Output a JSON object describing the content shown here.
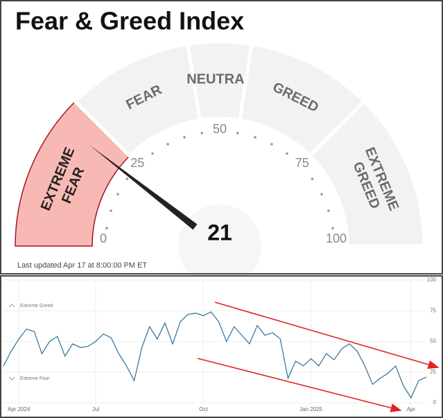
{
  "gauge": {
    "title": "Fear & Greed Index",
    "value": 21,
    "range": [
      0,
      100
    ],
    "ticks": [
      0,
      25,
      50,
      75,
      100
    ],
    "zones": [
      [
        "EXTREME",
        "FEAR"
      ],
      [
        "FEAR"
      ],
      [
        "NEUTRAL"
      ],
      [
        "GREED"
      ],
      [
        "EXTREME",
        "GREED"
      ]
    ],
    "updated": "Last updated Apr 17 at 8:00:00 PM ET"
  },
  "chart_data": {
    "type": "line",
    "categories": [
      null,
      null,
      "Apr 2024",
      null,
      null,
      null,
      null,
      null,
      null,
      null,
      null,
      null,
      "Jul",
      null,
      null,
      null,
      null,
      null,
      null,
      null,
      null,
      null,
      null,
      null,
      null,
      null,
      "Oct",
      null,
      null,
      null,
      null,
      null,
      null,
      null,
      null,
      null,
      null,
      null,
      null,
      null,
      "Jan 2025",
      null,
      null,
      null,
      null,
      null,
      null,
      null,
      null,
      null,
      null,
      null,
      null,
      "Apr",
      null,
      null
    ],
    "values": [
      30,
      42,
      52,
      60,
      58,
      40,
      50,
      54,
      38,
      48,
      45,
      46,
      50,
      56,
      53,
      40,
      30,
      18,
      45,
      62,
      52,
      65,
      48,
      66,
      72,
      73,
      71,
      74,
      66,
      50,
      62,
      55,
      48,
      63,
      55,
      57,
      52,
      20,
      34,
      30,
      36,
      30,
      40,
      35,
      44,
      48,
      42,
      30,
      15,
      20,
      24,
      30,
      14,
      4,
      18,
      21
    ],
    "color": "#2a6f97",
    "ylim": [
      0,
      100
    ],
    "yticks": [
      0,
      25,
      50,
      75,
      100
    ],
    "grid": true,
    "annotations": [
      "Extreme Greed",
      "Extreme Fear"
    ]
  }
}
